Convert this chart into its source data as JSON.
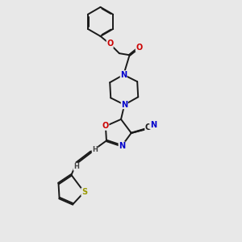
{
  "bg_color": "#e8e8e8",
  "bond_color": "#1a1a1a",
  "bond_width": 1.4,
  "atom_colors": {
    "N": "#0000cc",
    "O": "#cc0000",
    "S": "#999900",
    "C": "#1a1a1a",
    "H": "#444444"
  }
}
